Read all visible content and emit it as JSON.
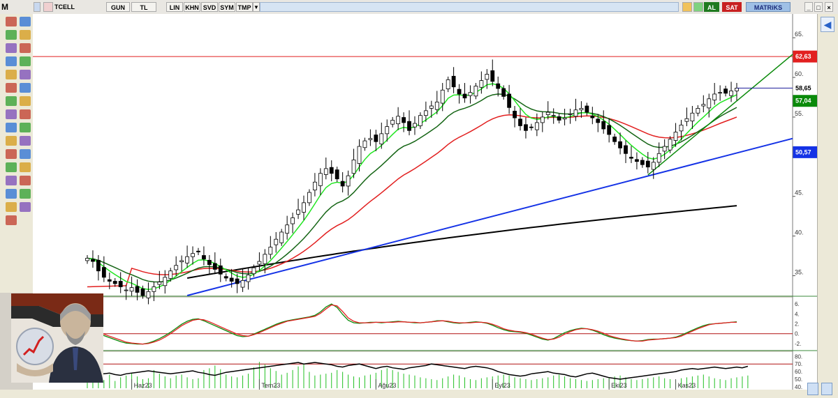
{
  "toolbar": {
    "symbol": "TCELL",
    "period": "GUN",
    "currency": "TL",
    "scale": "LIN",
    "buttons": [
      "KHN",
      "SVD",
      "SYM",
      "TMP"
    ],
    "buy_label": "AL",
    "sell_label": "SAT",
    "brand": "MATRiKS",
    "accent_colors": {
      "buy": "#1f7a1f",
      "sell": "#c82020",
      "brand_bg": "#9fc0e6"
    }
  },
  "icons": {
    "left_tools": [
      "pencil-icon",
      "arrow-icon",
      "line-icon",
      "edit-icon",
      "fibonacci-icon",
      "cross-icon",
      "brush-icon",
      "ruler-icon",
      "color-icon",
      "swap-icon",
      "note-icon",
      "align-icon",
      "bell-icon",
      "add-icon",
      "cut-icon",
      "vision-icon",
      "move-icon",
      "bar-icon",
      "zoom-icon",
      "erase-icon",
      "grid-icon",
      "ruler-green-icon",
      "left-arrow-icon",
      "close-icon",
      "link-icon",
      "up-arrow-icon",
      "box-icon",
      "down-arrow-icon",
      "magnify-icon",
      "search-icon",
      "help-icon"
    ],
    "right_tools": [
      "back-arrow-icon",
      "scroll-right-icon"
    ]
  },
  "chart_data": [
    {
      "type": "candlestick",
      "symbol": "TCELL",
      "x_tick_labels": [
        "Haz23",
        "Tem23",
        "Ağu23",
        "Eyl23",
        "Eki23",
        "Kas23"
      ],
      "y_tick_labels": [
        "35.",
        "40.",
        "45.",
        "50.",
        "55.",
        "60.",
        "65."
      ],
      "ylim": [
        32.5,
        68
      ],
      "price_tags": [
        {
          "value": "62,63",
          "color": "#e21f1f"
        },
        {
          "value": "58,65",
          "color": "#ffffff"
        },
        {
          "value": "57,04",
          "color": "#0a8a0a"
        },
        {
          "value": "50,57",
          "color": "#1432e6"
        }
      ],
      "horizontal_line": 62.63,
      "closes": [
        37.2,
        36.8,
        35.6,
        34.8,
        34.3,
        34.0,
        33.6,
        33.2,
        33.5,
        32.9,
        32.5,
        33.0,
        33.6,
        34.2,
        34.8,
        35.6,
        36.3,
        36.9,
        37.4,
        37.8,
        38.0,
        37.1,
        36.4,
        35.8,
        35.2,
        34.7,
        34.3,
        34.0,
        34.4,
        35.1,
        36.0,
        36.8,
        37.7,
        38.6,
        39.6,
        40.5,
        41.4,
        42.3,
        43.3,
        44.2,
        45.5,
        46.8,
        47.9,
        48.5,
        47.9,
        47.2,
        46.3,
        47.6,
        49.6,
        51.3,
        52.0,
        52.3,
        51.9,
        52.9,
        53.8,
        54.6,
        55.1,
        54.3,
        53.3,
        54.2,
        55.2,
        55.8,
        56.4,
        56.9,
        58.4,
        59.7,
        58.8,
        57.9,
        57.4,
        58.1,
        58.9,
        59.6,
        60.4,
        59.5,
        58.6,
        57.6,
        56.2,
        54.9,
        53.9,
        53.3,
        53.7,
        54.3,
        55.0,
        55.6,
        55.2,
        54.6,
        54.9,
        55.4,
        55.9,
        56.1,
        55.6,
        54.9,
        54.3,
        53.5,
        52.8,
        51.9,
        51.1,
        50.4,
        49.8,
        49.4,
        49.0,
        48.7,
        49.3,
        50.4,
        51.3,
        52.2,
        53.1,
        54.0,
        54.8,
        55.5,
        56.1,
        56.6,
        57.3,
        57.9,
        58.1,
        58.0,
        58.3,
        58.65
      ],
      "indicators": [
        {
          "name": "ma-short",
          "color": "#22e622"
        },
        {
          "name": "ma-medium",
          "color": "#146414"
        },
        {
          "name": "ma-long",
          "color": "#e21f1f"
        },
        {
          "name": "ma-very-long",
          "color": "#000000"
        },
        {
          "name": "trendline-blue",
          "color": "#1432e6"
        },
        {
          "name": "trendline-green",
          "color": "#0a8a0a"
        }
      ]
    },
    {
      "type": "line",
      "name": "macd-panel",
      "y_tick_labels": [
        "6.",
        "4.",
        "2.",
        "0.",
        "-2."
      ],
      "ylim": [
        -3,
        7
      ],
      "series": [
        {
          "values": [
            0.5,
            0.4,
            0.0,
            -0.4,
            -0.8,
            -1.2,
            -1.6,
            -1.9,
            -2.0,
            -2.1,
            -2.1,
            -1.9,
            -1.5,
            -1.0,
            -0.4,
            0.3,
            1.1,
            1.9,
            2.5,
            2.9,
            3.0,
            2.6,
            2.1,
            1.6,
            1.1,
            0.6,
            0.1,
            -0.4,
            -0.6,
            -0.5,
            -0.1,
            0.4,
            0.9,
            1.4,
            1.9,
            2.3,
            2.6,
            2.8,
            3.0,
            3.2,
            3.4,
            3.7,
            4.4,
            5.4,
            6.0,
            5.3,
            3.9,
            2.7,
            2.2,
            2.1,
            2.2,
            2.3,
            2.3,
            2.2,
            2.3,
            2.4,
            2.5,
            2.4,
            2.3,
            2.2,
            2.2,
            2.3,
            2.4,
            2.6,
            2.6,
            2.4,
            2.2,
            2.1,
            2.2,
            2.3,
            2.4,
            2.3,
            2.1,
            1.7,
            1.2,
            0.8,
            0.5,
            0.4,
            0.3,
            0.1,
            -0.3,
            -0.7,
            -1.1,
            -1.3,
            -1.0,
            -0.4,
            0.2,
            0.6,
            0.9,
            1.1,
            1.0,
            0.7,
            0.3,
            -0.2,
            -0.6,
            -0.9,
            -1.1,
            -1.3,
            -1.4,
            -1.5,
            -1.4,
            -1.2,
            -1.1,
            -1.1,
            -1.0,
            -0.9,
            -0.7,
            -0.3,
            0.2,
            0.7,
            1.2,
            1.6,
            1.9,
            2.0,
            2.1,
            2.2,
            2.3,
            2.4
          ]
        },
        {
          "values": [
            0.6,
            0.5,
            0.2,
            -0.1,
            -0.5,
            -0.9,
            -1.3,
            -1.7,
            -1.9,
            -2.0,
            -2.1,
            -2.0,
            -1.7,
            -1.3,
            -0.7,
            0.0,
            0.8,
            1.6,
            2.2,
            2.7,
            2.9,
            2.8,
            2.4,
            1.9,
            1.4,
            0.9,
            0.4,
            -0.1,
            -0.4,
            -0.5,
            -0.2,
            0.2,
            0.7,
            1.2,
            1.7,
            2.1,
            2.5,
            2.7,
            2.9,
            3.1,
            3.3,
            3.5,
            4.1,
            5.0,
            5.8,
            5.6,
            4.5,
            3.2,
            2.5,
            2.2,
            2.2,
            2.2,
            2.3,
            2.3,
            2.3,
            2.3,
            2.4,
            2.4,
            2.3,
            2.3,
            2.2,
            2.3,
            2.4,
            2.5,
            2.6,
            2.5,
            2.3,
            2.2,
            2.2,
            2.2,
            2.3,
            2.3,
            2.2,
            1.9,
            1.5,
            1.0,
            0.7,
            0.5,
            0.4,
            0.2,
            -0.1,
            -0.5,
            -0.9,
            -1.2,
            -1.1,
            -0.7,
            -0.1,
            0.4,
            0.8,
            1.0,
            1.0,
            0.8,
            0.5,
            0.1,
            -0.4,
            -0.7,
            -1.0,
            -1.2,
            -1.4,
            -1.5,
            -1.5,
            -1.3,
            -1.2,
            -1.1,
            -1.0,
            -0.9,
            -0.8,
            -0.5,
            0.0,
            0.5,
            1.0,
            1.4,
            1.8,
            2.0,
            2.1,
            2.2,
            2.3,
            2.3
          ]
        }
      ]
    },
    {
      "type": "line",
      "name": "rsi-panel",
      "y_tick_labels": [
        "80.",
        "70.",
        "60.",
        "50.",
        "40."
      ],
      "ylim": [
        38,
        84
      ],
      "reference_line": 70,
      "values": [
        62,
        60,
        58,
        57,
        58,
        56,
        55,
        57,
        58,
        59,
        60,
        61,
        60,
        59,
        58,
        57,
        58,
        59,
        60,
        61,
        59,
        58,
        56,
        55,
        57,
        59,
        60,
        61,
        62,
        63,
        64,
        65,
        66,
        67,
        68,
        69,
        70,
        71,
        72,
        70,
        71,
        72,
        71,
        70,
        69,
        67,
        66,
        68,
        69,
        70,
        68,
        66,
        64,
        66,
        67,
        65,
        64,
        63,
        65,
        66,
        67,
        68,
        70,
        69,
        68,
        67,
        66,
        65,
        64,
        66,
        67,
        66,
        65,
        63,
        60,
        58,
        56,
        55,
        54,
        55,
        57,
        58,
        59,
        60,
        58,
        57,
        56,
        54,
        53,
        55,
        57,
        58,
        56,
        54,
        52,
        51,
        50,
        51,
        52,
        53,
        54,
        55,
        56,
        57,
        58,
        59,
        60,
        62,
        63,
        64,
        63,
        64,
        65,
        66,
        65,
        64,
        65,
        66,
        65,
        67
      ],
      "volume": [
        20,
        22,
        25,
        18,
        30,
        16,
        24,
        28,
        34,
        26,
        20,
        22,
        40,
        32,
        26,
        22,
        28,
        30,
        24,
        20,
        22,
        40,
        44,
        50,
        42,
        30,
        26,
        24,
        28,
        32,
        46,
        58,
        52,
        44,
        38,
        30,
        34,
        40,
        48,
        52,
        36,
        28,
        30,
        32,
        34,
        40,
        36,
        30,
        26,
        24,
        28,
        30,
        34,
        40,
        44,
        40,
        36,
        32,
        30,
        28,
        24,
        22,
        20,
        18,
        22,
        26,
        30,
        28,
        24,
        20,
        18,
        22,
        24,
        26,
        28,
        30,
        28,
        24,
        22,
        20,
        18,
        20,
        22,
        24,
        28,
        30,
        26,
        22,
        20,
        18,
        16,
        18,
        20,
        22,
        24,
        26,
        28,
        24,
        20,
        18,
        20,
        22,
        24,
        26,
        22,
        20,
        18,
        22,
        24,
        26,
        28,
        30,
        26,
        22,
        20,
        18,
        22,
        24,
        26,
        28
      ]
    }
  ]
}
